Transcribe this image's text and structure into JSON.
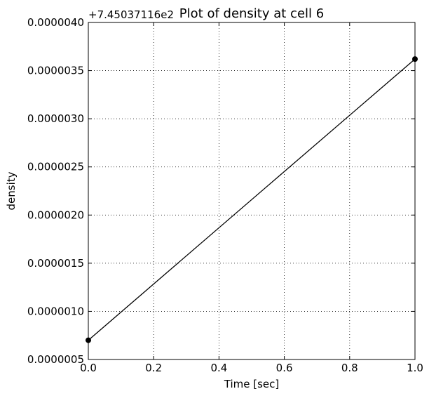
{
  "chart_data": {
    "type": "line",
    "title": "Plot of density at cell 6",
    "xlabel": "Time [sec]",
    "ylabel": "density",
    "y_offset_label": "+7.45037116e2",
    "xlim": [
      0.0,
      1.0
    ],
    "ylim": [
      5e-07,
      4e-06
    ],
    "x_ticks": [
      0.0,
      0.2,
      0.4,
      0.6,
      0.8,
      1.0
    ],
    "x_tick_labels": [
      "0.0",
      "0.2",
      "0.4",
      "0.6",
      "0.8",
      "1.0"
    ],
    "y_ticks": [
      5e-07,
      1e-06,
      1.5e-06,
      2e-06,
      2.5e-06,
      3e-06,
      3.5e-06,
      4e-06
    ],
    "y_tick_labels": [
      "0.0000005",
      "0.0000010",
      "0.0000015",
      "0.0000020",
      "0.0000025",
      "0.0000030",
      "0.0000035",
      "0.0000040"
    ],
    "grid": true,
    "series": [
      {
        "x": [
          0.0,
          1.0
        ],
        "y": [
          7e-07,
          3.62e-06
        ],
        "color": "#000000",
        "marker": "circle"
      }
    ]
  }
}
